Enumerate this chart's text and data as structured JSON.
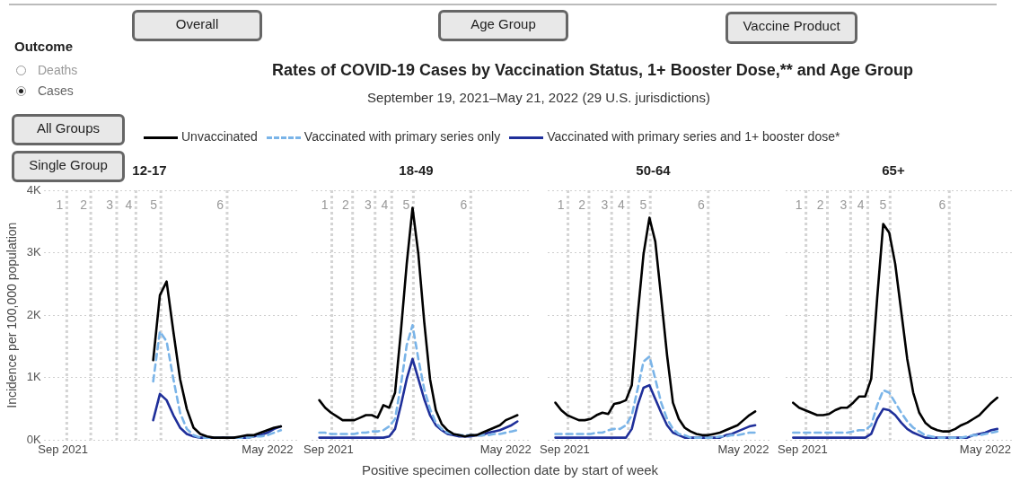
{
  "chart_data": [
    {
      "type": "other",
      "title": "Rates of COVID-19 Cases by Vaccination Status, 1+ Booster Dose,** and Age Group",
      "subtitle": "September 19, 2021–May 21, 2022 (29 U.S. jurisdictions)",
      "annotations": [
        "Overall",
        "Age Group",
        "Vaccine Product",
        "Outcome",
        "Deaths",
        "Cases",
        "All Groups",
        "Single Group",
        "Positive specimen collection date by start of week"
      ]
    },
    {
      "type": "line",
      "title": "12-17",
      "ylabel": "Incidence per 100,000 population",
      "legend": "top",
      "grid": "y",
      "x": [
        "2022-01-02",
        "2022-01-09",
        "2022-01-16",
        "2022-01-23",
        "2022-01-30",
        "2022-02-06",
        "2022-02-13",
        "2022-02-20",
        "2022-02-27",
        "2022-03-06",
        "2022-03-13",
        "2022-03-20",
        "2022-03-27",
        "2022-04-03",
        "2022-04-10",
        "2022-04-17",
        "2022-04-24",
        "2022-05-01",
        "2022-05-08",
        "2022-05-15"
      ],
      "xlim": [
        "2021-09-10",
        "2022-06-01"
      ],
      "xticks": [
        {
          "value": "2021-09-30",
          "label": "Sep 2021"
        },
        {
          "value": "2022-05-01",
          "label": "May 2022"
        }
      ],
      "ylim": [
        0,
        4000
      ],
      "yticks": [
        {
          "value": 0,
          "label": "0K"
        },
        {
          "value": 1000,
          "label": "1K"
        },
        {
          "value": 2000,
          "label": "2K"
        },
        {
          "value": 3000,
          "label": "3K"
        },
        {
          "value": 4000,
          "label": "4K"
        }
      ],
      "ref_lines": [
        {
          "axis": "x",
          "value": "2021-10-04",
          "label": "1",
          "color": "#d4d4d4",
          "line_style": "dotted"
        },
        {
          "axis": "x",
          "value": "2021-10-29",
          "label": "2",
          "color": "#d4d4d4",
          "line_style": "dotted"
        },
        {
          "axis": "x",
          "value": "2021-11-25",
          "label": "3",
          "color": "#d4d4d4",
          "line_style": "dotted"
        },
        {
          "axis": "x",
          "value": "2021-12-15",
          "label": "4",
          "color": "#d4d4d4",
          "line_style": "dotted"
        },
        {
          "axis": "x",
          "value": "2022-01-10",
          "label": "5",
          "color": "#d4d4d4",
          "line_style": "dotted"
        },
        {
          "axis": "x",
          "value": "2022-03-20",
          "label": "6",
          "color": "#d4d4d4",
          "line_style": "dotted"
        }
      ],
      "series": [
        {
          "name": "Unvaccinated",
          "color": "#000000",
          "line_style": "solid",
          "values": [
            1280,
            2320,
            2540,
            1740,
            980,
            500,
            200,
            100,
            60,
            40,
            40,
            40,
            40,
            60,
            80,
            80,
            120,
            160,
            200,
            220
          ]
        },
        {
          "name": "Vaccinated with primary series only",
          "color": "#7ab4e8",
          "line_style": "dashed",
          "values": [
            940,
            1740,
            1580,
            980,
            440,
            180,
            80,
            40,
            40,
            40,
            40,
            40,
            40,
            40,
            40,
            60,
            60,
            80,
            120,
            160
          ]
        },
        {
          "name": "Vaccinated with primary series and 1+ booster dose*",
          "color": "#1f2f9a",
          "line_style": "solid",
          "values": [
            320,
            740,
            640,
            400,
            200,
            100,
            60,
            40,
            40,
            40,
            40,
            40,
            40,
            40,
            40,
            60,
            80,
            120,
            180,
            220
          ]
        }
      ]
    },
    {
      "type": "line",
      "title": "18-49",
      "grid": "y",
      "tick_labels": "x",
      "x": [
        "2021-09-19",
        "2021-09-26",
        "2021-10-03",
        "2021-10-10",
        "2021-10-17",
        "2021-10-24",
        "2021-10-31",
        "2021-11-07",
        "2021-11-14",
        "2021-11-21",
        "2021-11-28",
        "2021-12-05",
        "2021-12-12",
        "2021-12-19",
        "2021-12-26",
        "2022-01-02",
        "2022-01-09",
        "2022-01-16",
        "2022-01-23",
        "2022-01-30",
        "2022-02-06",
        "2022-02-13",
        "2022-02-20",
        "2022-02-27",
        "2022-03-06",
        "2022-03-13",
        "2022-03-20",
        "2022-03-27",
        "2022-04-03",
        "2022-04-10",
        "2022-04-17",
        "2022-04-24",
        "2022-05-01",
        "2022-05-08",
        "2022-05-15"
      ],
      "xlim": [
        "2021-09-10",
        "2022-06-01"
      ],
      "xticks": [
        {
          "value": "2021-09-30",
          "label": "Sep 2021"
        },
        {
          "value": "2022-05-01",
          "label": "May 2022"
        }
      ],
      "ylim": [
        0,
        4000
      ],
      "yticks": [
        {
          "value": 0,
          "label": null
        },
        {
          "value": 1000,
          "label": null
        },
        {
          "value": 2000,
          "label": null
        },
        {
          "value": 3000,
          "label": null
        },
        {
          "value": 4000,
          "label": null
        }
      ],
      "ref_lines": [
        {
          "axis": "x",
          "value": "2021-10-04",
          "label": "1",
          "color": "#d4d4d4",
          "line_style": "dotted"
        },
        {
          "axis": "x",
          "value": "2021-10-29",
          "label": "2",
          "color": "#d4d4d4",
          "line_style": "dotted"
        },
        {
          "axis": "x",
          "value": "2021-11-25",
          "label": "3",
          "color": "#d4d4d4",
          "line_style": "dotted"
        },
        {
          "axis": "x",
          "value": "2021-12-15",
          "label": "4",
          "color": "#d4d4d4",
          "line_style": "dotted"
        },
        {
          "axis": "x",
          "value": "2022-01-10",
          "label": "5",
          "color": "#d4d4d4",
          "line_style": "dotted"
        },
        {
          "axis": "x",
          "value": "2022-03-20",
          "label": "6",
          "color": "#d4d4d4",
          "line_style": "dotted"
        }
      ],
      "series": [
        {
          "color": "#000000",
          "line_style": "solid",
          "values": [
            640,
            520,
            440,
            380,
            320,
            320,
            320,
            360,
            400,
            400,
            360,
            560,
            520,
            760,
            1740,
            2820,
            3720,
            2980,
            1900,
            980,
            480,
            260,
            160,
            100,
            80,
            60,
            80,
            80,
            120,
            160,
            200,
            240,
            320,
            360,
            400
          ]
        },
        {
          "color": "#7ab4e8",
          "line_style": "dashed",
          "values": [
            120,
            120,
            100,
            100,
            100,
            100,
            100,
            120,
            120,
            140,
            140,
            160,
            220,
            340,
            880,
            1520,
            1840,
            1300,
            820,
            500,
            280,
            180,
            120,
            100,
            80,
            80,
            80,
            80,
            80,
            80,
            100,
            100,
            120,
            140,
            160
          ]
        },
        {
          "color": "#1f2f9a",
          "line_style": "solid",
          "values": [
            40,
            40,
            40,
            40,
            40,
            40,
            40,
            40,
            40,
            40,
            40,
            40,
            60,
            180,
            560,
            980,
            1300,
            980,
            660,
            400,
            240,
            160,
            100,
            80,
            60,
            60,
            60,
            80,
            80,
            120,
            140,
            160,
            200,
            240,
            300
          ]
        }
      ]
    },
    {
      "type": "line",
      "title": "50-64",
      "grid": "y",
      "tick_labels": "x",
      "x": [
        "2021-09-19",
        "2021-09-26",
        "2021-10-03",
        "2021-10-10",
        "2021-10-17",
        "2021-10-24",
        "2021-10-31",
        "2021-11-07",
        "2021-11-14",
        "2021-11-21",
        "2021-11-28",
        "2021-12-05",
        "2021-12-12",
        "2021-12-19",
        "2021-12-26",
        "2022-01-02",
        "2022-01-09",
        "2022-01-16",
        "2022-01-23",
        "2022-01-30",
        "2022-02-06",
        "2022-02-13",
        "2022-02-20",
        "2022-02-27",
        "2022-03-06",
        "2022-03-13",
        "2022-03-20",
        "2022-03-27",
        "2022-04-03",
        "2022-04-10",
        "2022-04-17",
        "2022-04-24",
        "2022-05-01",
        "2022-05-08",
        "2022-05-15"
      ],
      "xlim": [
        "2021-09-10",
        "2022-06-01"
      ],
      "xticks": [
        {
          "value": "2021-09-30",
          "label": "Sep 2021"
        },
        {
          "value": "2022-05-01",
          "label": "May 2022"
        }
      ],
      "ylim": [
        0,
        4000
      ],
      "yticks": [
        {
          "value": 0,
          "label": null
        },
        {
          "value": 1000,
          "label": null
        },
        {
          "value": 2000,
          "label": null
        },
        {
          "value": 3000,
          "label": null
        },
        {
          "value": 4000,
          "label": null
        }
      ],
      "ref_lines": [
        {
          "axis": "x",
          "value": "2021-10-04",
          "label": "1",
          "color": "#d4d4d4",
          "line_style": "dotted"
        },
        {
          "axis": "x",
          "value": "2021-10-29",
          "label": "2",
          "color": "#d4d4d4",
          "line_style": "dotted"
        },
        {
          "axis": "x",
          "value": "2021-11-25",
          "label": "3",
          "color": "#d4d4d4",
          "line_style": "dotted"
        },
        {
          "axis": "x",
          "value": "2021-12-15",
          "label": "4",
          "color": "#d4d4d4",
          "line_style": "dotted"
        },
        {
          "axis": "x",
          "value": "2022-01-10",
          "label": "5",
          "color": "#d4d4d4",
          "line_style": "dotted"
        },
        {
          "axis": "x",
          "value": "2022-03-20",
          "label": "6",
          "color": "#d4d4d4",
          "line_style": "dotted"
        }
      ],
      "series": [
        {
          "color": "#000000",
          "line_style": "solid",
          "values": [
            600,
            480,
            400,
            360,
            320,
            320,
            340,
            400,
            440,
            420,
            580,
            600,
            640,
            880,
            2000,
            2980,
            3560,
            3180,
            2280,
            1360,
            600,
            340,
            200,
            140,
            100,
            80,
            80,
            100,
            120,
            160,
            200,
            240,
            320,
            400,
            460
          ]
        },
        {
          "color": "#7ab4e8",
          "line_style": "dashed",
          "values": [
            100,
            100,
            100,
            100,
            100,
            100,
            100,
            120,
            120,
            160,
            180,
            180,
            240,
            400,
            820,
            1260,
            1340,
            980,
            600,
            340,
            180,
            100,
            80,
            40,
            40,
            40,
            40,
            40,
            60,
            60,
            80,
            80,
            100,
            120,
            120
          ]
        },
        {
          "color": "#1f2f9a",
          "line_style": "solid",
          "values": [
            40,
            40,
            40,
            40,
            40,
            40,
            40,
            40,
            40,
            40,
            40,
            40,
            40,
            180,
            560,
            840,
            880,
            660,
            440,
            240,
            120,
            80,
            40,
            40,
            40,
            40,
            40,
            40,
            40,
            80,
            100,
            140,
            180,
            220,
            240
          ]
        }
      ]
    },
    {
      "type": "line",
      "title": "65+",
      "grid": "y",
      "tick_labels": "x",
      "x": [
        "2021-09-19",
        "2021-09-26",
        "2021-10-03",
        "2021-10-10",
        "2021-10-17",
        "2021-10-24",
        "2021-10-31",
        "2021-11-07",
        "2021-11-14",
        "2021-11-21",
        "2021-11-28",
        "2021-12-05",
        "2021-12-12",
        "2021-12-19",
        "2021-12-26",
        "2022-01-02",
        "2022-01-09",
        "2022-01-16",
        "2022-01-23",
        "2022-01-30",
        "2022-02-06",
        "2022-02-13",
        "2022-02-20",
        "2022-02-27",
        "2022-03-06",
        "2022-03-13",
        "2022-03-20",
        "2022-03-27",
        "2022-04-03",
        "2022-04-10",
        "2022-04-17",
        "2022-04-24",
        "2022-05-01",
        "2022-05-08",
        "2022-05-15"
      ],
      "xlim": [
        "2021-09-10",
        "2022-06-01"
      ],
      "xticks": [
        {
          "value": "2021-09-30",
          "label": "Sep 2021"
        },
        {
          "value": "2022-05-01",
          "label": "May 2022"
        }
      ],
      "ylim": [
        0,
        4000
      ],
      "yticks": [
        {
          "value": 0,
          "label": null
        },
        {
          "value": 1000,
          "label": null
        },
        {
          "value": 2000,
          "label": null
        },
        {
          "value": 3000,
          "label": null
        },
        {
          "value": 4000,
          "label": null
        }
      ],
      "ref_lines": [
        {
          "axis": "x",
          "value": "2021-10-04",
          "label": "1",
          "color": "#d4d4d4",
          "line_style": "dotted"
        },
        {
          "axis": "x",
          "value": "2021-10-29",
          "label": "2",
          "color": "#d4d4d4",
          "line_style": "dotted"
        },
        {
          "axis": "x",
          "value": "2021-11-25",
          "label": "3",
          "color": "#d4d4d4",
          "line_style": "dotted"
        },
        {
          "axis": "x",
          "value": "2021-12-15",
          "label": "4",
          "color": "#d4d4d4",
          "line_style": "dotted"
        },
        {
          "axis": "x",
          "value": "2022-01-10",
          "label": "5",
          "color": "#d4d4d4",
          "line_style": "dotted"
        },
        {
          "axis": "x",
          "value": "2022-03-20",
          "label": "6",
          "color": "#d4d4d4",
          "line_style": "dotted"
        }
      ],
      "series": [
        {
          "color": "#000000",
          "line_style": "solid",
          "values": [
            600,
            520,
            480,
            440,
            400,
            400,
            420,
            480,
            520,
            520,
            600,
            700,
            700,
            980,
            2280,
            3460,
            3320,
            2820,
            2060,
            1300,
            760,
            440,
            280,
            200,
            160,
            140,
            140,
            180,
            240,
            280,
            340,
            400,
            500,
            600,
            680
          ]
        },
        {
          "color": "#7ab4e8",
          "line_style": "dashed",
          "values": [
            120,
            120,
            120,
            120,
            120,
            120,
            120,
            120,
            120,
            120,
            140,
            160,
            160,
            240,
            560,
            800,
            760,
            600,
            440,
            300,
            200,
            140,
            80,
            60,
            40,
            40,
            40,
            40,
            40,
            60,
            80,
            80,
            100,
            120,
            140
          ]
        },
        {
          "color": "#1f2f9a",
          "line_style": "solid",
          "values": [
            40,
            40,
            40,
            40,
            40,
            40,
            40,
            40,
            40,
            40,
            40,
            40,
            40,
            100,
            340,
            500,
            480,
            400,
            280,
            180,
            120,
            80,
            40,
            40,
            40,
            40,
            40,
            40,
            40,
            40,
            80,
            100,
            120,
            160,
            180
          ]
        }
      ]
    }
  ]
}
